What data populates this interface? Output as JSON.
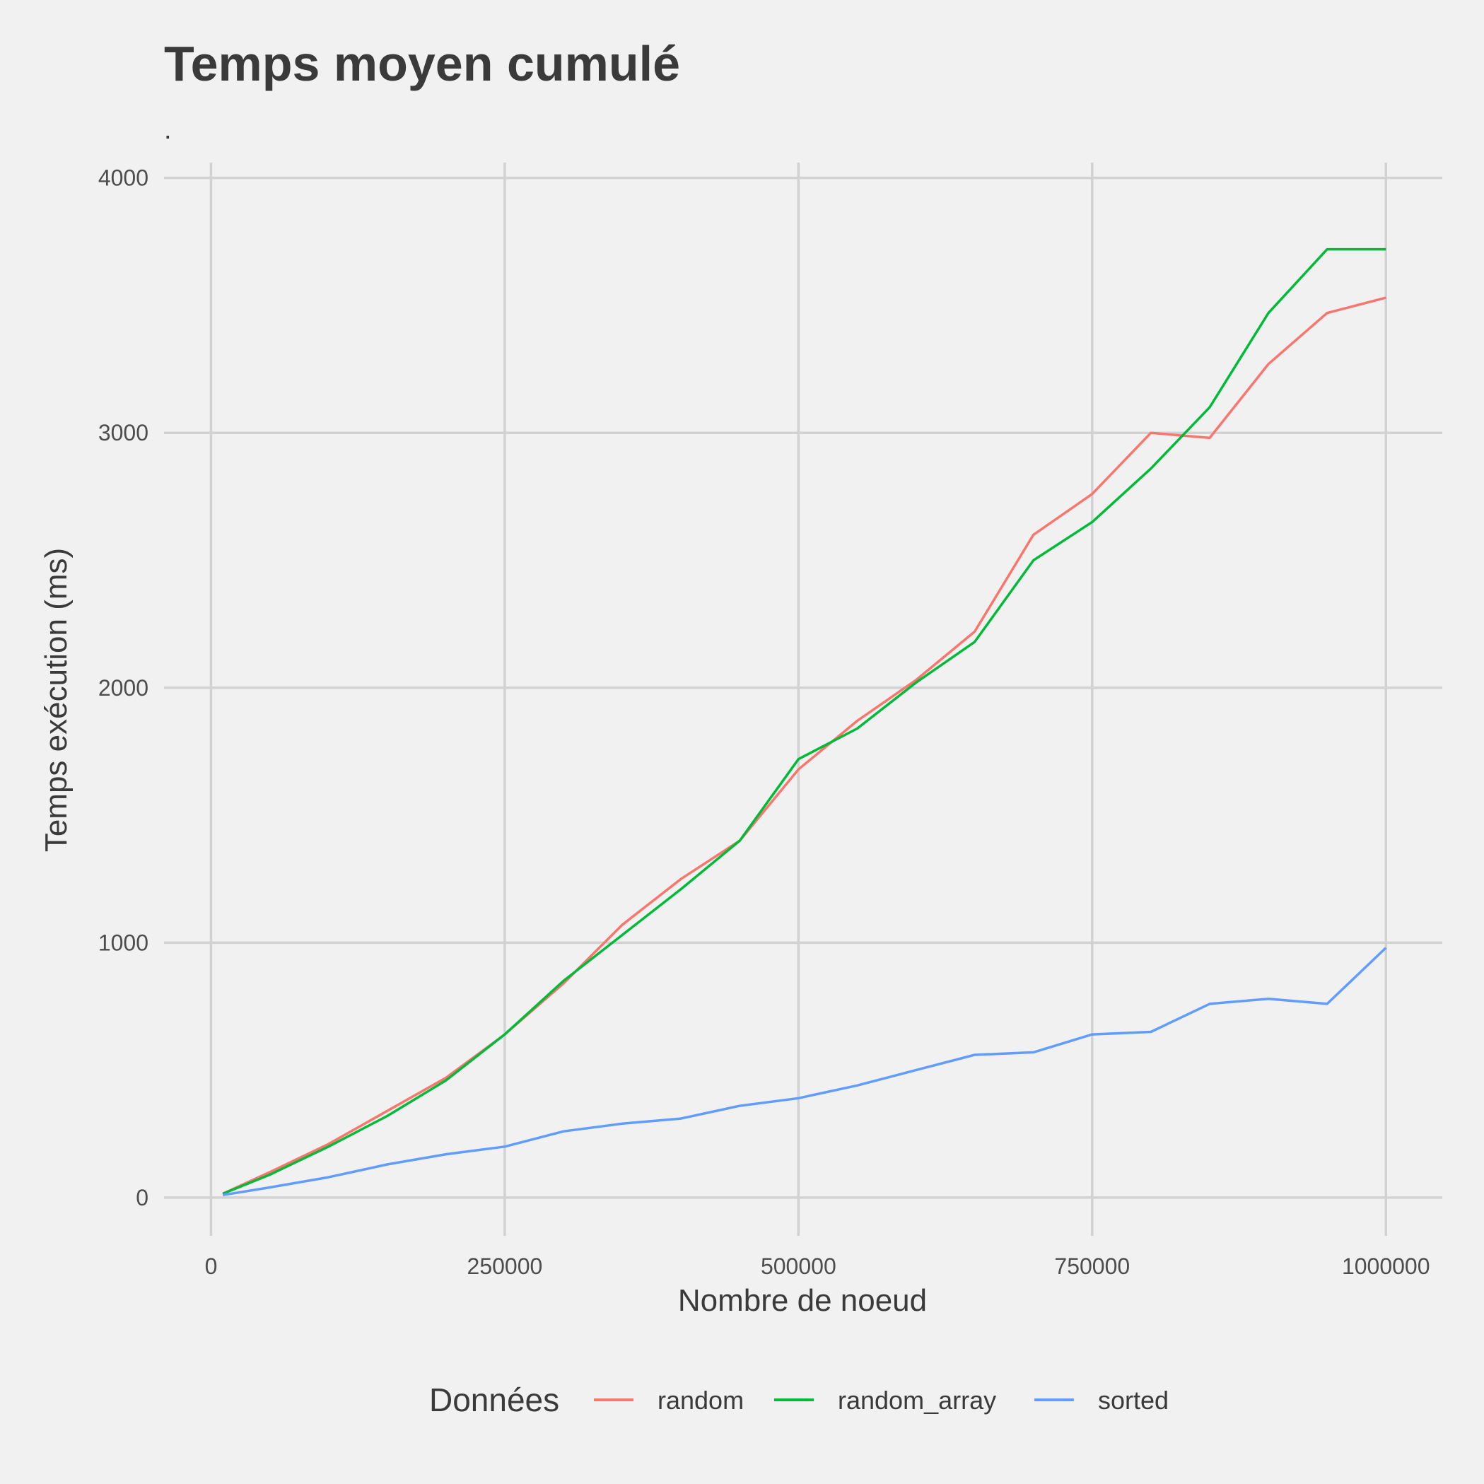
{
  "chart_data": {
    "type": "line",
    "title": "Temps moyen cumulé",
    "subtitle": ".",
    "xlabel": "Nombre de noeud",
    "ylabel": "Temps exécution (ms)",
    "xlim": [
      -40000,
      1048000
    ],
    "ylim": [
      -150,
      4060
    ],
    "x_ticks": [
      0,
      250000,
      500000,
      750000,
      1000000
    ],
    "x_tick_labels": [
      "0",
      "250000",
      "500000",
      "750000",
      "1000000"
    ],
    "y_ticks": [
      0,
      1000,
      2000,
      3000,
      4000
    ],
    "y_tick_labels": [
      "0",
      "1000",
      "2000",
      "3000",
      "4000"
    ],
    "grid": true,
    "legend": {
      "title": "Données",
      "position": "bottom"
    },
    "x": [
      10000,
      50000,
      100000,
      150000,
      200000,
      250000,
      300000,
      350000,
      400000,
      450000,
      500000,
      550000,
      600000,
      650000,
      700000,
      750000,
      800000,
      850000,
      900000,
      950000,
      1000000
    ],
    "series": [
      {
        "name": "random",
        "color": "#F8766D",
        "values": [
          15,
          100,
          210,
          340,
          470,
          640,
          840,
          1070,
          1250,
          1400,
          1680,
          1870,
          2030,
          2220,
          2600,
          2760,
          3000,
          2980,
          3270,
          3470,
          3530
        ]
      },
      {
        "name": "random_array",
        "color": "#00BA38",
        "values": [
          15,
          90,
          200,
          320,
          460,
          640,
          850,
          1030,
          1210,
          1400,
          1720,
          1840,
          2020,
          2180,
          2500,
          2650,
          2860,
          3100,
          3470,
          3720,
          3720
        ]
      },
      {
        "name": "sorted",
        "color": "#619CFF",
        "values": [
          10,
          40,
          80,
          130,
          170,
          200,
          260,
          290,
          310,
          360,
          390,
          440,
          500,
          560,
          570,
          640,
          650,
          760,
          780,
          760,
          980
        ]
      }
    ]
  }
}
